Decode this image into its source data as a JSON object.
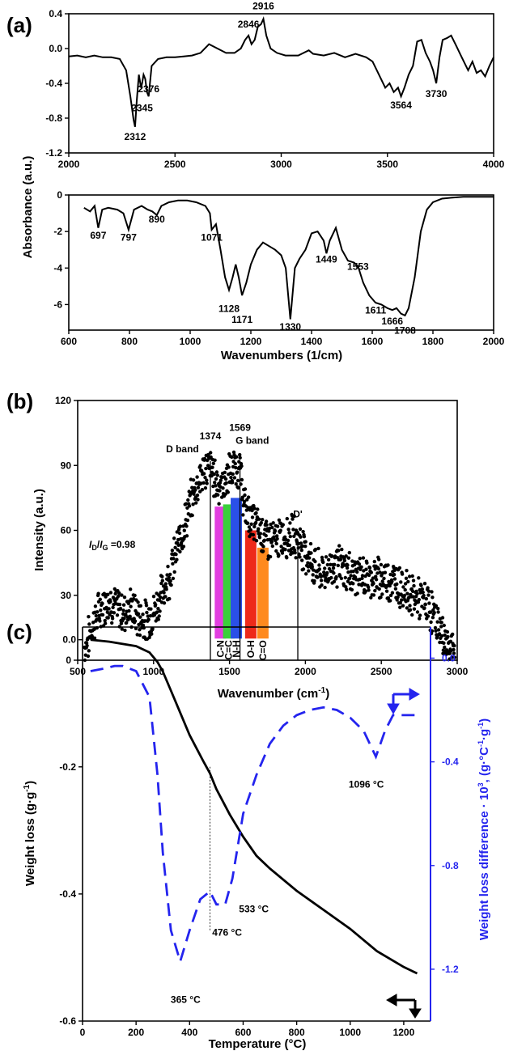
{
  "chart_data": [
    {
      "id": "a_top",
      "panel": "(a)",
      "type": "line",
      "xlim": [
        2000,
        4000
      ],
      "ylim": [
        -1.2,
        0.4
      ],
      "xticks": [
        "2000",
        "2500",
        "3000",
        "3500",
        "4000"
      ],
      "yticks": [
        "0.4",
        "0.0",
        "-0.4",
        "-0.8",
        "-1.2"
      ],
      "ylabel": "Absorbance (a.u.)",
      "series": [
        {
          "x": [
            2000,
            2040,
            2080,
            2120,
            2160,
            2200,
            2240,
            2270,
            2290,
            2305,
            2312,
            2320,
            2330,
            2340,
            2345,
            2352,
            2360,
            2368,
            2376,
            2390,
            2420,
            2460,
            2500,
            2540,
            2580,
            2620,
            2660,
            2700,
            2740,
            2780,
            2810,
            2830,
            2846,
            2860,
            2875,
            2890,
            2905,
            2916,
            2930,
            2950,
            2980,
            3020,
            3080,
            3130,
            3150,
            3200,
            3250,
            3300,
            3350,
            3400,
            3430,
            3460,
            3490,
            3510,
            3530,
            3550,
            3564,
            3580,
            3600,
            3620,
            3640,
            3660,
            3680,
            3700,
            3715,
            3730,
            3745,
            3760,
            3780,
            3800,
            3820,
            3850,
            3880,
            3900,
            3920,
            3940,
            3960,
            3980,
            4000
          ],
          "y": [
            -0.09,
            -0.08,
            -0.1,
            -0.08,
            -0.1,
            -0.1,
            -0.12,
            -0.25,
            -0.55,
            -0.82,
            -0.9,
            -0.6,
            -0.3,
            -0.45,
            -0.4,
            -0.3,
            -0.35,
            -0.5,
            -0.55,
            -0.2,
            -0.12,
            -0.1,
            -0.1,
            -0.09,
            -0.08,
            -0.05,
            0.05,
            0.0,
            -0.05,
            -0.05,
            0.0,
            0.1,
            0.15,
            0.05,
            0.1,
            0.25,
            0.28,
            0.34,
            0.15,
            0.0,
            -0.05,
            -0.08,
            -0.08,
            -0.02,
            -0.06,
            -0.08,
            -0.05,
            -0.1,
            -0.06,
            -0.1,
            -0.15,
            -0.3,
            -0.45,
            -0.4,
            -0.5,
            -0.45,
            -0.55,
            -0.45,
            -0.3,
            -0.2,
            0.08,
            0.1,
            -0.05,
            -0.15,
            -0.25,
            -0.4,
            -0.1,
            0.1,
            0.12,
            0.15,
            0.05,
            -0.1,
            -0.25,
            -0.15,
            -0.28,
            -0.25,
            -0.32,
            -0.2,
            -0.1
          ]
        }
      ],
      "annotations": [
        {
          "text": "2312",
          "x": 2312,
          "y": -1.05
        },
        {
          "text": "2345",
          "x": 2345,
          "y": -0.72
        },
        {
          "text": "2376",
          "x": 2376,
          "y": -0.5
        },
        {
          "text": "2846",
          "x": 2846,
          "y": 0.24
        },
        {
          "text": "2916",
          "x": 2916,
          "y": 0.45
        },
        {
          "text": "3564",
          "x": 3564,
          "y": -0.69
        },
        {
          "text": "3730",
          "x": 3730,
          "y": -0.56
        }
      ]
    },
    {
      "id": "a_bottom",
      "type": "line",
      "xlim": [
        600,
        2000
      ],
      "ylim": [
        -7.4,
        0
      ],
      "xticks": [
        "600",
        "800",
        "1000",
        "1200",
        "1400",
        "1600",
        "1800",
        "2000"
      ],
      "yticks": [
        "0",
        "-2",
        "-4",
        "-6"
      ],
      "xlabel": "Wavenumbers (1/cm)",
      "series": [
        {
          "x": [
            650,
            670,
            685,
            697,
            710,
            730,
            760,
            780,
            797,
            815,
            840,
            860,
            875,
            890,
            905,
            930,
            960,
            990,
            1020,
            1050,
            1065,
            1071,
            1085,
            1100,
            1115,
            1128,
            1140,
            1150,
            1160,
            1171,
            1185,
            1200,
            1220,
            1240,
            1260,
            1280,
            1300,
            1315,
            1330,
            1345,
            1360,
            1380,
            1400,
            1420,
            1440,
            1449,
            1460,
            1480,
            1500,
            1520,
            1540,
            1553,
            1570,
            1590,
            1611,
            1630,
            1650,
            1666,
            1680,
            1695,
            1708,
            1720,
            1740,
            1760,
            1780,
            1800,
            1830,
            1860,
            1900,
            1950,
            2000
          ],
          "y": [
            -0.7,
            -0.9,
            -0.6,
            -1.8,
            -0.8,
            -0.7,
            -0.8,
            -1.0,
            -1.9,
            -0.8,
            -0.6,
            -0.8,
            -0.9,
            -1.1,
            -0.6,
            -0.4,
            -0.3,
            -0.3,
            -0.4,
            -0.6,
            -1.0,
            -1.9,
            -1.6,
            -3.0,
            -4.5,
            -5.2,
            -4.5,
            -3.8,
            -4.5,
            -5.5,
            -4.8,
            -3.8,
            -3.0,
            -2.6,
            -2.8,
            -3.0,
            -3.3,
            -4.0,
            -6.8,
            -4.0,
            -3.5,
            -3.0,
            -2.1,
            -2.0,
            -2.5,
            -3.2,
            -2.5,
            -1.8,
            -3.0,
            -3.6,
            -3.7,
            -3.9,
            -4.8,
            -5.5,
            -5.9,
            -6.0,
            -6.2,
            -6.3,
            -6.2,
            -6.5,
            -6.6,
            -6.2,
            -4.5,
            -2.0,
            -0.8,
            -0.4,
            -0.2,
            -0.15,
            -0.1,
            -0.1,
            -0.1
          ]
        }
      ],
      "annotations": [
        {
          "text": "697",
          "x": 697,
          "y": -2.4
        },
        {
          "text": "797",
          "x": 797,
          "y": -2.5
        },
        {
          "text": "890",
          "x": 890,
          "y": -1.5
        },
        {
          "text": "1071",
          "x": 1071,
          "y": -2.5
        },
        {
          "text": "1128",
          "x": 1128,
          "y": -6.4
        },
        {
          "text": "1171",
          "x": 1171,
          "y": -7.0
        },
        {
          "text": "1330",
          "x": 1330,
          "y": -7.4
        },
        {
          "text": "1449",
          "x": 1449,
          "y": -3.7
        },
        {
          "text": "1553",
          "x": 1553,
          "y": -4.1
        },
        {
          "text": "1611",
          "x": 1611,
          "y": -6.5
        },
        {
          "text": "1666",
          "x": 1666,
          "y": -7.1
        },
        {
          "text": "1708",
          "x": 1708,
          "y": -7.6
        }
      ]
    },
    {
      "id": "b",
      "panel": "(b)",
      "type": "scatter",
      "xlim": [
        500,
        3000
      ],
      "ylim": [
        0,
        120
      ],
      "xticks": [
        "500",
        "1000",
        "1500",
        "2000",
        "2500",
        "3000"
      ],
      "yticks": [
        "0",
        "30",
        "60",
        "90",
        "120"
      ],
      "xlabel": "Wavenumber (cm",
      "xlabel_sup": "-1",
      "xlabel_end": ")",
      "ylabel": "Intensity (a.u.)",
      "profile": {
        "x": [
          540,
          560,
          600,
          650,
          700,
          750,
          800,
          850,
          900,
          950,
          1000,
          1050,
          1100,
          1150,
          1200,
          1250,
          1300,
          1340,
          1374,
          1400,
          1450,
          1500,
          1540,
          1569,
          1600,
          1650,
          1700,
          1750,
          1800,
          1850,
          1900,
          1950,
          2000,
          2050,
          2100,
          2150,
          2200,
          2300,
          2400,
          2500,
          2600,
          2700,
          2800,
          2850,
          2900,
          2950,
          2980
        ],
        "y": [
          5,
          8,
          16,
          24,
          28,
          25,
          22,
          24,
          20,
          18,
          22,
          30,
          38,
          50,
          62,
          74,
          84,
          88,
          90,
          84,
          80,
          86,
          89,
          88,
          70,
          64,
          60,
          56,
          55,
          57,
          58,
          56,
          50,
          44,
          40,
          42,
          44,
          40,
          38,
          38,
          36,
          30,
          26,
          20,
          12,
          6,
          4
        ]
      },
      "bars": [
        {
          "label": "C-N",
          "x": 1440,
          "value": 71,
          "color": "#e23ee0"
        },
        {
          "label": "C=C",
          "x": 1495,
          "value": 72,
          "color": "#3ad13a"
        },
        {
          "label": "N-H",
          "x": 1545,
          "value": 75,
          "color": "#2a50e8"
        },
        {
          "label": "O-H",
          "x": 1640,
          "value": 60,
          "color": "#ee2a1a"
        },
        {
          "label": "C=O",
          "x": 1720,
          "value": 52,
          "color": "#ff8a1e"
        }
      ],
      "vlines": [
        1374,
        1569,
        1950
      ],
      "annotations": [
        {
          "text": "1374",
          "x": 1374,
          "y": 102
        },
        {
          "text": "1569",
          "x": 1569,
          "y": 106
        },
        {
          "text": "D band",
          "x": 1190,
          "y": 96
        },
        {
          "text": "G band",
          "x": 1650,
          "y": 100
        },
        {
          "text": "D'",
          "x": 1950,
          "y": 66
        }
      ],
      "ratio_label": {
        "sym_i": "I",
        "sub_d": "D",
        "slash": "/",
        "sub_g": "G",
        "value": " =0.98"
      }
    },
    {
      "id": "c",
      "panel": "(c)",
      "type": "line",
      "xlim": [
        0,
        1300
      ],
      "ylim": [
        -0.6,
        0.02
      ],
      "ylim_right": [
        -1.4,
        0.12
      ],
      "xticks": [
        "0",
        "200",
        "400",
        "600",
        "800",
        "1000",
        "1200"
      ],
      "yticks": [
        "0.0",
        "-0.2",
        "-0.4",
        "-0.6"
      ],
      "yticks_right": [
        "0.0",
        "-0.4",
        "-0.8",
        "-1.2"
      ],
      "xlabel": "Temperature (°C)",
      "ylabel": "Weight loss (g·g",
      "ylabel_sup": "-1",
      "ylabel_end": ")",
      "ylabel_right": "Weight loss difference · 10",
      "ylabel_right_sup": "3",
      "ylabel_right_mid": ", (g·°C",
      "ylabel_right_sup2": "-1",
      "ylabel_right_mid2": "·g",
      "ylabel_right_sup3": "-1",
      "ylabel_right_end": ")",
      "series": [
        {
          "axis": "left",
          "color": "#000000",
          "x": [
            30,
            100,
            200,
            250,
            280,
            300,
            330,
            360,
            400,
            450,
            476,
            500,
            550,
            600,
            650,
            700,
            800,
            900,
            1000,
            1100,
            1200,
            1250
          ],
          "y": [
            0.0,
            -0.003,
            -0.01,
            -0.02,
            -0.035,
            -0.05,
            -0.08,
            -0.11,
            -0.15,
            -0.19,
            -0.21,
            -0.235,
            -0.275,
            -0.31,
            -0.34,
            -0.36,
            -0.395,
            -0.425,
            -0.455,
            -0.49,
            -0.515,
            -0.525
          ]
        },
        {
          "axis": "right",
          "color": "#2424ee",
          "dash": true,
          "x": [
            30,
            80,
            120,
            150,
            200,
            250,
            280,
            300,
            330,
            365,
            400,
            440,
            476,
            500,
            533,
            560,
            600,
            650,
            700,
            750,
            800,
            850,
            900,
            950,
            1000,
            1050,
            1096,
            1130,
            1160,
            1200,
            1250
          ],
          "y": [
            -0.05,
            -0.04,
            -0.03,
            -0.03,
            -0.05,
            -0.15,
            -0.45,
            -0.75,
            -1.05,
            -1.17,
            -1.05,
            -0.93,
            -0.9,
            -0.95,
            -0.95,
            -0.85,
            -0.6,
            -0.45,
            -0.33,
            -0.26,
            -0.22,
            -0.2,
            -0.19,
            -0.2,
            -0.23,
            -0.28,
            -0.38,
            -0.28,
            -0.22,
            -0.22,
            -0.22
          ]
        }
      ],
      "annotations": [
        {
          "text": "365 °C",
          "x": 385,
          "y_right": -1.33
        },
        {
          "text": "476 °C",
          "x": 540,
          "y_right": -1.07
        },
        {
          "text": "533 °C",
          "x": 640,
          "y_right": -0.98
        },
        {
          "text": "1096 °C",
          "x": 1060,
          "y_right": -0.5
        }
      ],
      "dotted_x": 476
    }
  ]
}
